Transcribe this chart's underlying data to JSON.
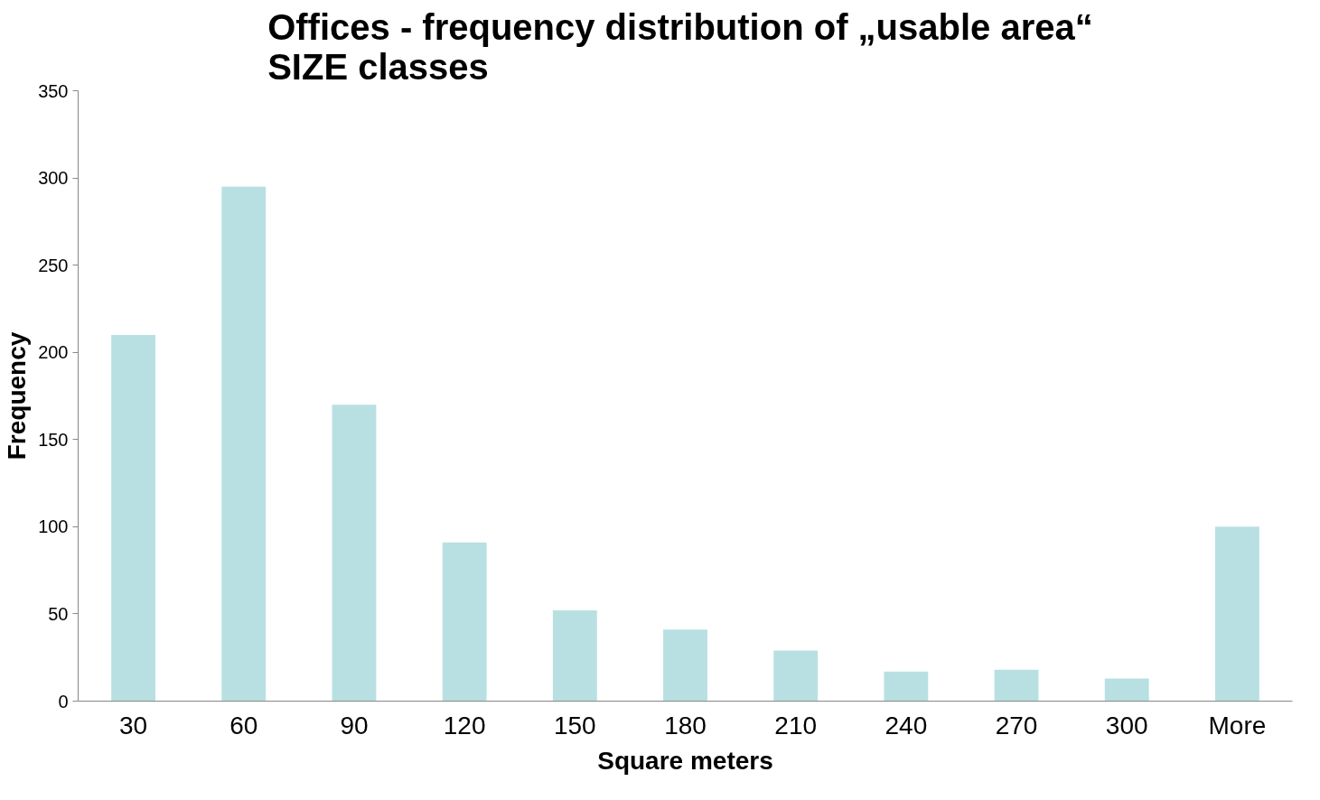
{
  "chart_data": {
    "type": "bar",
    "title": "Offices - frequency distribution  of „usable area“  SIZE classes",
    "xlabel": "Square meters",
    "ylabel": "Frequency",
    "categories": [
      "30",
      "60",
      "90",
      "120",
      "150",
      "180",
      "210",
      "240",
      "270",
      "300",
      "More"
    ],
    "values": [
      210,
      295,
      170,
      91,
      52,
      41,
      29,
      17,
      18,
      13,
      100
    ],
    "color": "#b8e0e2",
    "ylim": [
      0,
      350
    ],
    "yticks": [
      0,
      50,
      100,
      150,
      200,
      250,
      300,
      350
    ],
    "grid": false
  }
}
